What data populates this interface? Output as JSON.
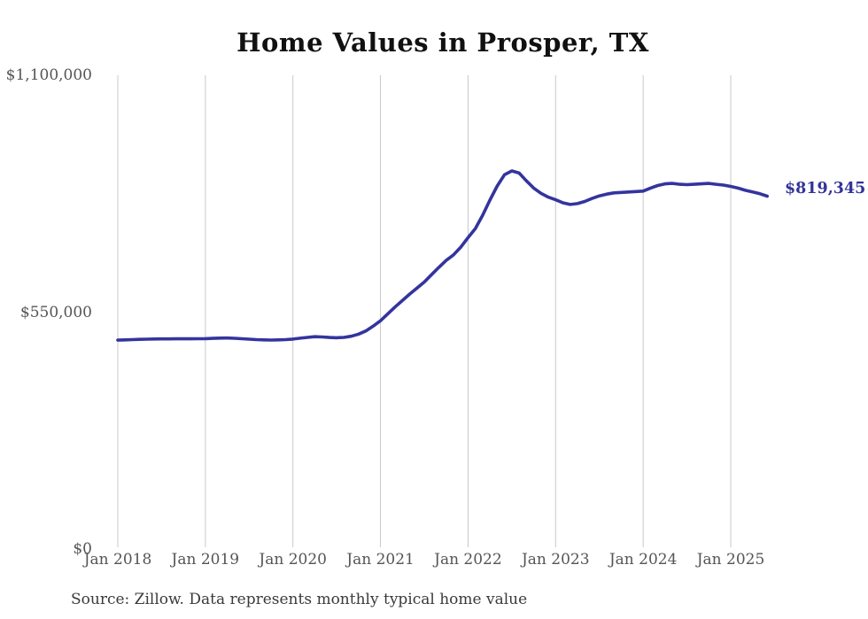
{
  "source_note": "Source: Zillow. Data represents monthly typical home value",
  "chart_data": {
    "type": "line",
    "title": "Home Values in Prosper, TX",
    "series_name": "Monthly typical home value (USD)",
    "end_label": "$819,345",
    "end_value": 819345,
    "ylim": [
      0,
      1100000
    ],
    "grid": "vertical-only",
    "legend": "none",
    "line_color": "#34349e",
    "end_label_color": "#333399",
    "gridline_color": "#c9c9c9",
    "y_ticks": [
      {
        "label": "$0",
        "value": 0
      },
      {
        "label": "$550,000",
        "value": 550000
      },
      {
        "label": "$1,100,000",
        "value": 1100000
      }
    ],
    "x_ticks": [
      "Jan 2018",
      "Jan 2019",
      "Jan 2020",
      "Jan 2021",
      "Jan 2022",
      "Jan 2023",
      "Jan 2024",
      "Jan 2025"
    ],
    "months": [
      "2018-01",
      "2018-02",
      "2018-03",
      "2018-04",
      "2018-05",
      "2018-06",
      "2018-07",
      "2018-08",
      "2018-09",
      "2018-10",
      "2018-11",
      "2018-12",
      "2019-01",
      "2019-02",
      "2019-03",
      "2019-04",
      "2019-05",
      "2019-06",
      "2019-07",
      "2019-08",
      "2019-09",
      "2019-10",
      "2019-11",
      "2019-12",
      "2020-01",
      "2020-02",
      "2020-03",
      "2020-04",
      "2020-05",
      "2020-06",
      "2020-07",
      "2020-08",
      "2020-09",
      "2020-10",
      "2020-11",
      "2020-12",
      "2021-01",
      "2021-02",
      "2021-03",
      "2021-04",
      "2021-05",
      "2021-06",
      "2021-07",
      "2021-08",
      "2021-09",
      "2021-10",
      "2021-11",
      "2021-12",
      "2022-01",
      "2022-02",
      "2022-03",
      "2022-04",
      "2022-05",
      "2022-06",
      "2022-07",
      "2022-08",
      "2022-09",
      "2022-10",
      "2022-11",
      "2022-12",
      "2023-01",
      "2023-02",
      "2023-03",
      "2023-04",
      "2023-05",
      "2023-06",
      "2023-07",
      "2023-08",
      "2023-09",
      "2023-10",
      "2023-11",
      "2023-12",
      "2024-01",
      "2024-02",
      "2024-03",
      "2024-04",
      "2024-05",
      "2024-06",
      "2024-07",
      "2024-08",
      "2024-09",
      "2024-10",
      "2024-11",
      "2024-12",
      "2025-01",
      "2025-02",
      "2025-03",
      "2025-04",
      "2025-05",
      "2025-06"
    ],
    "values": [
      485000,
      485600,
      486200,
      486800,
      487200,
      487600,
      487900,
      488000,
      488100,
      488100,
      488200,
      488300,
      488600,
      489200,
      489800,
      490000,
      489400,
      488400,
      487200,
      486200,
      485600,
      485300,
      485600,
      486300,
      487500,
      489500,
      491500,
      493000,
      492500,
      491200,
      490600,
      491500,
      494000,
      499000,
      506500,
      517500,
      530000,
      546000,
      562000,
      577000,
      592000,
      606000,
      620000,
      637000,
      654000,
      670000,
      683000,
      701000,
      723000,
      744000,
      775000,
      810000,
      843000,
      869000,
      878000,
      873000,
      855000,
      838000,
      826000,
      817000,
      811000,
      804000,
      800000,
      802000,
      807000,
      814000,
      820000,
      824000,
      827000,
      828000,
      829000,
      830000,
      831000,
      838000,
      844000,
      848000,
      849000,
      847000,
      846000,
      847000,
      848000,
      849000,
      847000,
      845000,
      842000,
      838000,
      833000,
      829000,
      825000,
      819345
    ]
  }
}
